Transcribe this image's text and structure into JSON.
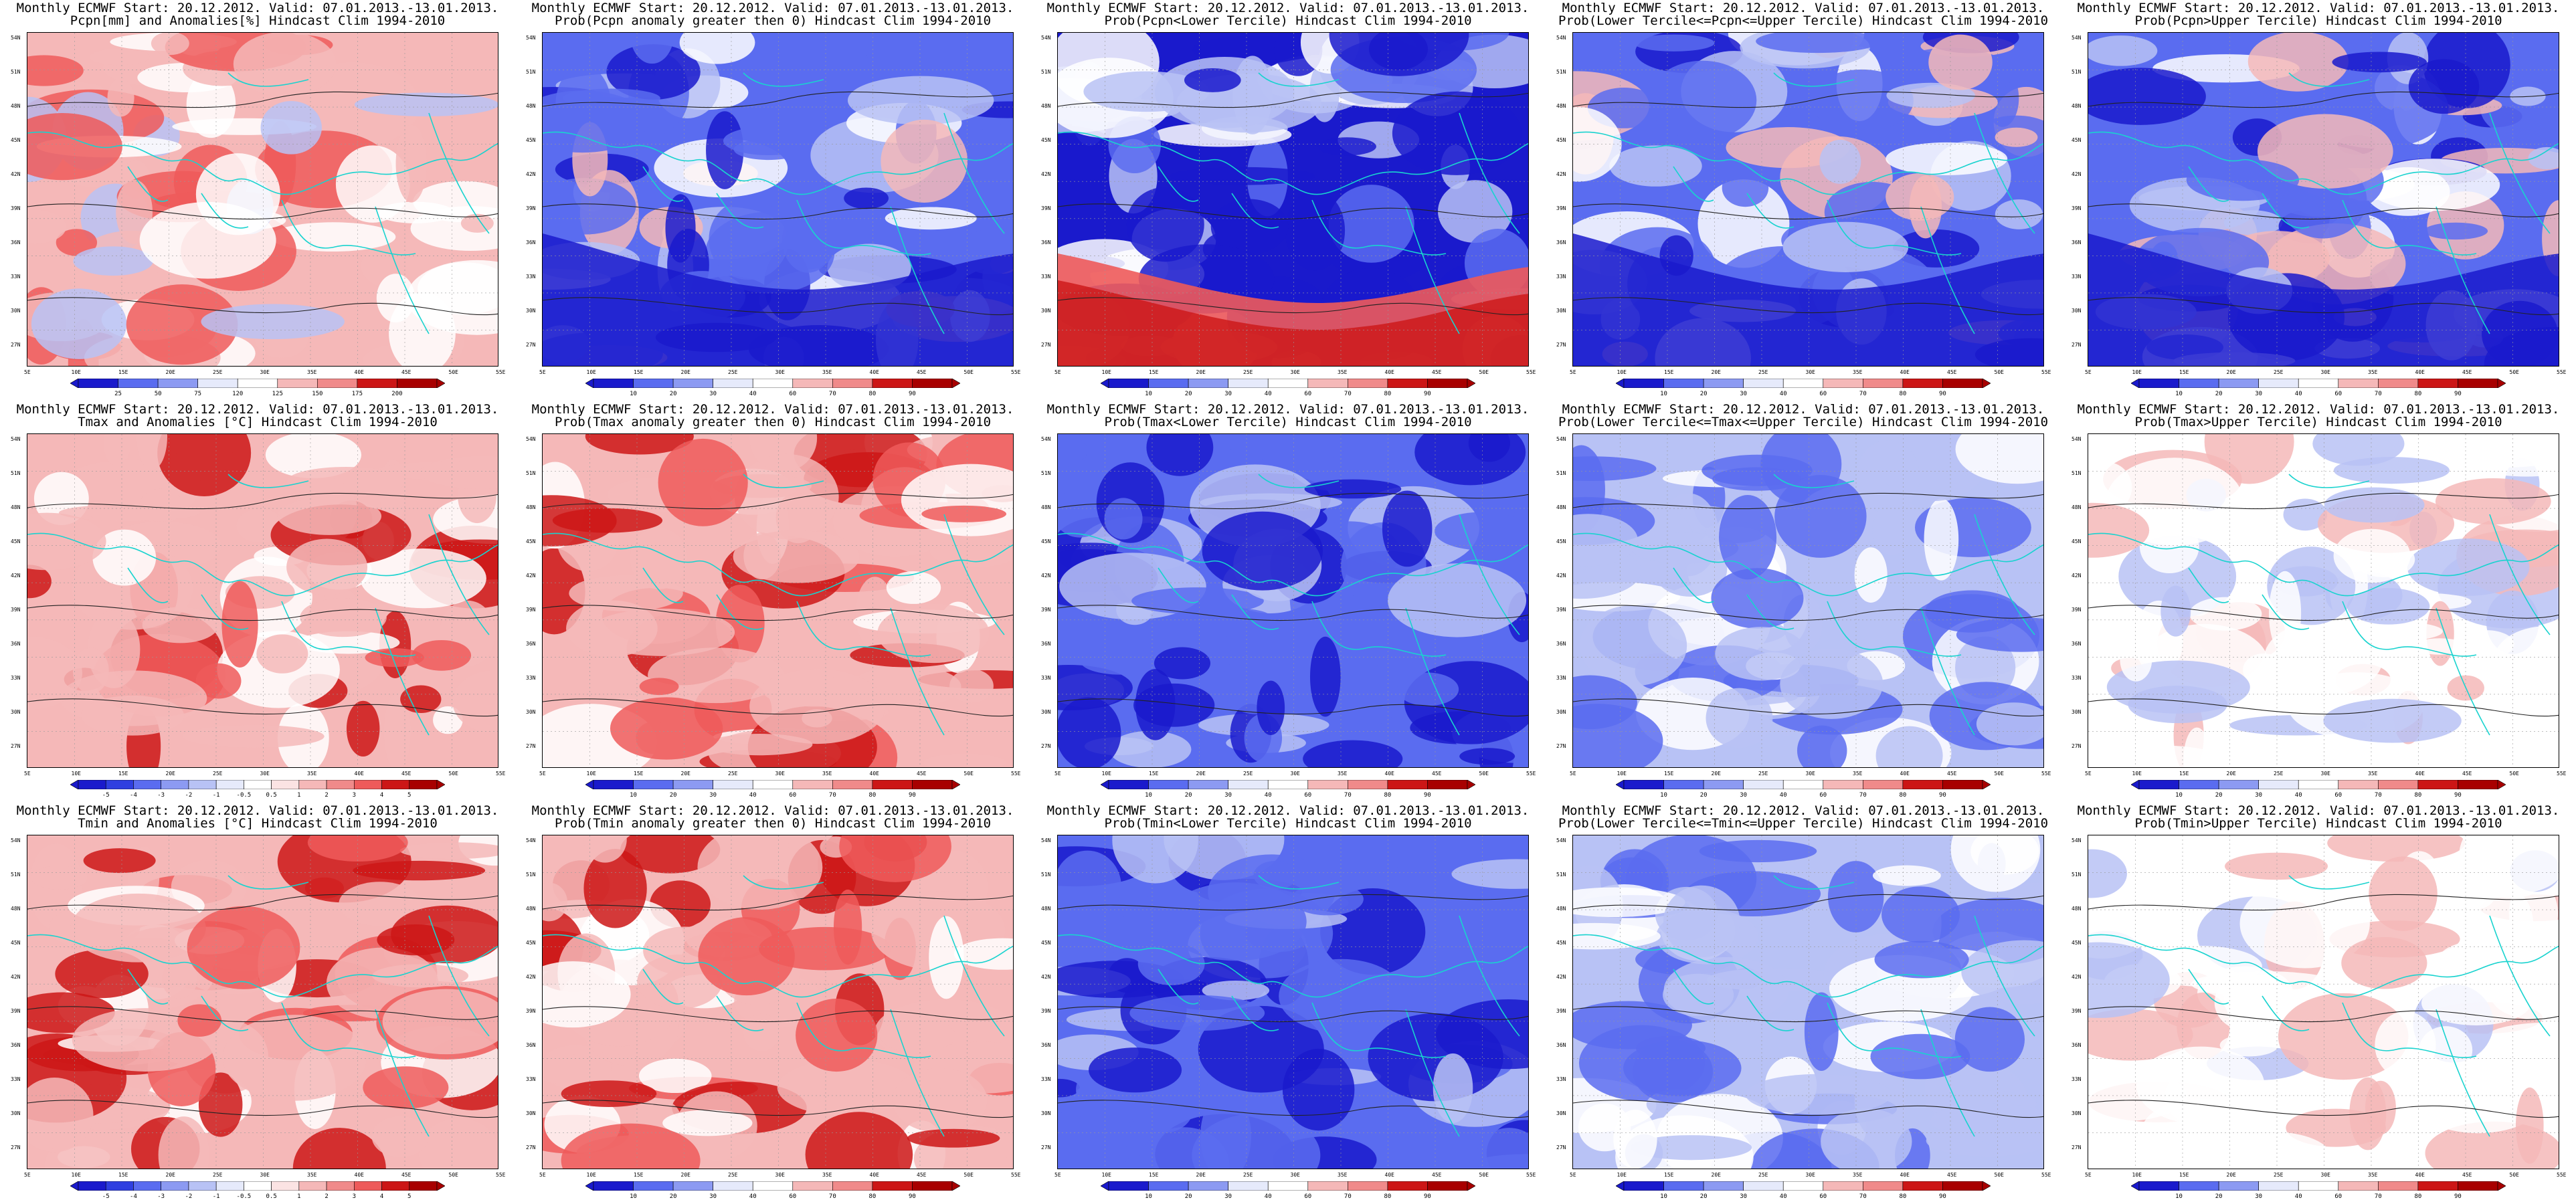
{
  "header": "Monthly ECMWF Start: 20.12.2012. Valid: 07.01.2013.-13.01.2013.",
  "panels": [
    {
      "title2": "Pcpn[mm] and Anomalies[%] Hindcast Clim 1994-2010",
      "scheme": "anom",
      "ticks": [
        "25",
        "50",
        "75",
        "120",
        "125",
        "150",
        "175",
        "200"
      ]
    },
    {
      "title2": "Prob(Pcpn anomaly greater then 0) Hindcast Clim 1994-2010",
      "scheme": "prob_cold",
      "ticks": [
        "10",
        "20",
        "30",
        "40",
        "60",
        "70",
        "80",
        "90"
      ]
    },
    {
      "title2": "Prob(Pcpn<Lower Tercile) Hindcast Clim 1994-2010",
      "scheme": "prob_hot",
      "ticks": [
        "10",
        "20",
        "30",
        "40",
        "60",
        "70",
        "80",
        "90"
      ]
    },
    {
      "title2": "Prob(Lower Tercile<=Pcpn<=Upper Tercile) Hindcast Clim 1994-2010",
      "scheme": "prob_cold",
      "ticks": [
        "10",
        "20",
        "30",
        "40",
        "60",
        "70",
        "80",
        "90"
      ]
    },
    {
      "title2": "Prob(Pcpn>Upper Tercile) Hindcast Clim 1994-2010",
      "scheme": "prob_cold",
      "ticks": [
        "10",
        "20",
        "30",
        "40",
        "60",
        "70",
        "80",
        "90"
      ]
    },
    {
      "title2": "Tmax and Anomalies [°C] Hindcast Clim 1994-2010",
      "scheme": "warm",
      "ticks": [
        "-5",
        "-4",
        "-3",
        "-2",
        "-1",
        "-0.5",
        "0.5",
        "1",
        "2",
        "3",
        "4",
        "5"
      ]
    },
    {
      "title2": "Prob(Tmax anomaly greater then 0) Hindcast Clim 1994-2010",
      "scheme": "warm",
      "ticks": [
        "10",
        "20",
        "30",
        "40",
        "60",
        "70",
        "80",
        "90"
      ]
    },
    {
      "title2": "Prob(Tmax<Lower Tercile) Hindcast Clim 1994-2010",
      "scheme": "deep_cold",
      "ticks": [
        "10",
        "20",
        "30",
        "40",
        "60",
        "70",
        "80",
        "90"
      ]
    },
    {
      "title2": "Prob(Lower Tercile<=Tmax<=Upper Tercile) Hindcast Clim 1994-2010",
      "scheme": "cold",
      "ticks": [
        "10",
        "20",
        "30",
        "40",
        "60",
        "70",
        "80",
        "90"
      ]
    },
    {
      "title2": "Prob(Tmax>Upper Tercile) Hindcast Clim 1994-2010",
      "scheme": "neutral",
      "ticks": [
        "10",
        "20",
        "30",
        "40",
        "60",
        "70",
        "80",
        "90"
      ]
    },
    {
      "title2": "Tmin and Anomalies [°C] Hindcast Clim 1994-2010",
      "scheme": "warm",
      "ticks": [
        "-5",
        "-4",
        "-3",
        "-2",
        "-1",
        "-0.5",
        "0.5",
        "1",
        "2",
        "3",
        "4",
        "5"
      ]
    },
    {
      "title2": "Prob(Tmin anomaly greater then 0) Hindcast Clim 1994-2010",
      "scheme": "warm",
      "ticks": [
        "10",
        "20",
        "30",
        "40",
        "60",
        "70",
        "80",
        "90"
      ]
    },
    {
      "title2": "Prob(Tmin<Lower Tercile) Hindcast Clim 1994-2010",
      "scheme": "deep_cold",
      "ticks": [
        "10",
        "20",
        "30",
        "40",
        "60",
        "70",
        "80",
        "90"
      ]
    },
    {
      "title2": "Prob(Lower Tercile<=Tmin<=Upper Tercile) Hindcast Clim 1994-2010",
      "scheme": "cold",
      "ticks": [
        "10",
        "20",
        "30",
        "40",
        "60",
        "70",
        "80",
        "90"
      ]
    },
    {
      "title2": "Prob(Tmin>Upper Tercile) Hindcast Clim 1994-2010",
      "scheme": "neutral",
      "ticks": [
        "10",
        "20",
        "30",
        "40",
        "60",
        "70",
        "80",
        "90"
      ]
    }
  ],
  "lat_labels": [
    "54N",
    "51N",
    "48N",
    "45N",
    "42N",
    "39N",
    "36N",
    "33N",
    "30N",
    "27N"
  ],
  "lon_labels": [
    "5E",
    "10E",
    "15E",
    "20E",
    "25E",
    "30E",
    "35E",
    "40E",
    "45E",
    "50E",
    "55E"
  ],
  "colors": {
    "coast": "#19d3cf",
    "contour": "#222222",
    "deep_blue": "#1a1acc",
    "mid_blue": "#5a6cf0",
    "light_blue": "#b8c2f5",
    "white": "#ffffff",
    "light_red": "#f5b8b8",
    "mid_red": "#ee5a5a",
    "deep_red": "#cc1616"
  }
}
